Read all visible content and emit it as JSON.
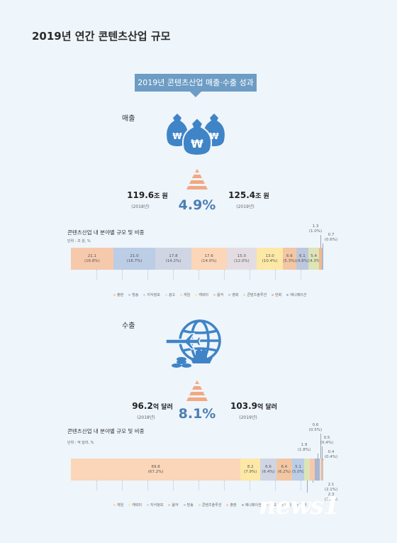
{
  "page_title": "2019년 연간 콘텐츠산업 규모",
  "banner": "2019년 콘텐츠산업 매출·수출 성과",
  "colors": {
    "accent": "#4c7fb3",
    "icon": "#3f84c7",
    "pyramid": "#f2a882",
    "categories": {
      "출판": "#f6c9ad",
      "방송": "#bccde6",
      "지식정보": "#cfd5e3",
      "광고": "#e3dde3",
      "게임": "#fbd6b8",
      "캐릭터": "#fde8a6",
      "음악": "#f3c7a3",
      "영화": "#bdc8de",
      "콘텐츠솔루션": "#dde4b7",
      "만화": "#f2b88c",
      "애니메이션": "#a9b6cf"
    }
  },
  "sales": {
    "label": "매출",
    "prev_amount": "119.6",
    "prev_unit": "조 원",
    "prev_year": "(2018년)",
    "curr_amount": "125.4",
    "curr_unit": "조 원",
    "curr_year": "(2019년)",
    "growth": "4.9%",
    "chart_title": "콘텐츠산업 내 분야별 규모 및 비중",
    "unit_note": "단위 : 조 원, %"
  },
  "export": {
    "label": "수출",
    "prev_amount": "96.2",
    "prev_unit": "억 달러",
    "prev_year": "(2018년)",
    "curr_amount": "103.9",
    "curr_unit": "억 달러",
    "curr_year": "(2019년)",
    "growth": "8.1%",
    "chart_title": "콘텐츠산업 내 분야별 규모 및 비중",
    "unit_note": "단위 : 억 달러, %"
  },
  "chart_data": [
    {
      "type": "bar",
      "orientation": "horizontal-stacked",
      "title": "콘텐츠산업 내 분야별 규모 및 비중",
      "unit": "단위 : 조 원, %",
      "legend": [
        "출판",
        "방송",
        "지식정보",
        "광고",
        "게임",
        "캐릭터",
        "음악",
        "영화",
        "콘텐츠솔루션",
        "만화",
        "애니메이션"
      ],
      "segments": [
        {
          "name": "출판",
          "value": 21.1,
          "share": "(16.8%)"
        },
        {
          "name": "방송",
          "value": 21.0,
          "share": "(16.7%)"
        },
        {
          "name": "지식정보",
          "value": 17.8,
          "share": "(14.2%)"
        },
        {
          "name": "게임",
          "value": 17.6,
          "share": "(14.0%)"
        },
        {
          "name": "광고",
          "value": 15.0,
          "share": "(12.0%)"
        },
        {
          "name": "캐릭터",
          "value": 13.0,
          "share": "(10.4%)"
        },
        {
          "name": "음악",
          "value": 6.6,
          "share": "(5.3%)"
        },
        {
          "name": "영화",
          "value": 6.1,
          "share": "(4.8%)"
        },
        {
          "name": "콘텐츠솔루션",
          "value": 5.4,
          "share": "(4.3%)"
        },
        {
          "name": "만화",
          "value": 1.3,
          "share": "(1.0%)"
        },
        {
          "name": "애니메이션",
          "value": 0.7,
          "share": "(0.6%)"
        }
      ]
    },
    {
      "type": "bar",
      "orientation": "horizontal-stacked",
      "title": "콘텐츠산업 내 분야별 규모 및 비중",
      "unit": "단위 : 억 달러, %",
      "legend": [
        "게임",
        "캐릭터",
        "지식정보",
        "음악",
        "방송",
        "콘텐츠솔루션",
        "출판",
        "애니메이션",
        "광고",
        "만화",
        "영화"
      ],
      "segments": [
        {
          "name": "게임",
          "value": 69.8,
          "share": "(67.2%)"
        },
        {
          "name": "캐릭터",
          "value": 8.2,
          "share": "(7.9%)"
        },
        {
          "name": "지식정보",
          "value": 6.6,
          "share": "(6.4%)"
        },
        {
          "name": "음악",
          "value": 6.4,
          "share": "(6.2%)"
        },
        {
          "name": "방송",
          "value": 5.1,
          "share": "(5.0%)"
        },
        {
          "name": "콘텐츠솔루션",
          "value": 2.3,
          "share": "(2.2%)"
        },
        {
          "name": "출판",
          "value": 2.1,
          "share": "(2.1%)"
        },
        {
          "name": "애니메이션",
          "value": 1.9,
          "share": "(1.8%)"
        },
        {
          "name": "광고",
          "value": 0.6,
          "share": "(0.5%)"
        },
        {
          "name": "만화",
          "value": 0.5,
          "share": "(0.4%)"
        },
        {
          "name": "영화",
          "value": 0.4,
          "share": "(0.4%)"
        }
      ]
    }
  ],
  "watermark": "news1"
}
